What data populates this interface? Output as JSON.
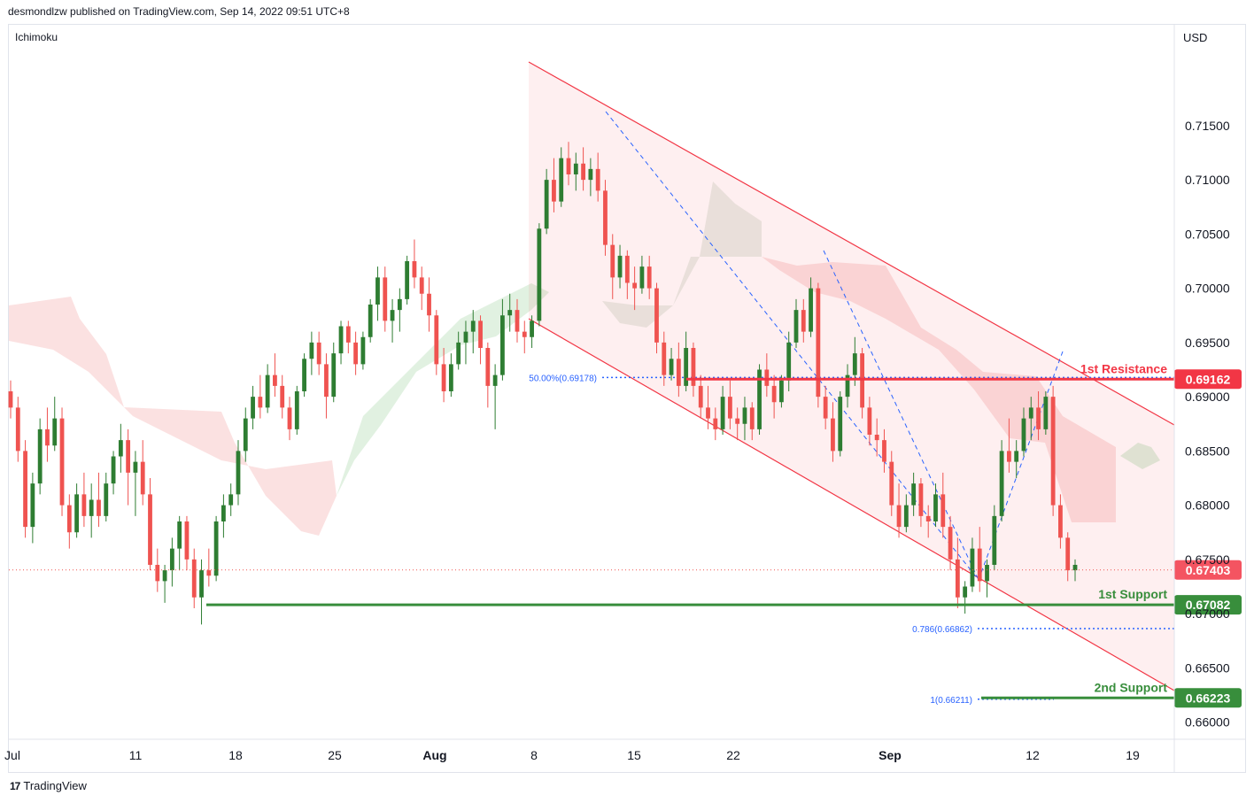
{
  "header": {
    "published": "desmondlzw published on TradingView.com, Sep 14, 2022 09:51 UTC+8"
  },
  "footer": {
    "brand": "TradingView",
    "logo": "17"
  },
  "indicator": "Ichimoku",
  "currency": "USD",
  "colors": {
    "up": "#26a69a",
    "up_body": "#2e7d32",
    "down": "#ef5350",
    "resistance": "#f23645",
    "support": "#388e3c",
    "fib": "#2962ff",
    "channel": "#f23645"
  },
  "chart_data": {
    "type": "candlestick",
    "title": "",
    "y_ticks": [
      "0.71500",
      "0.71000",
      "0.70500",
      "0.70000",
      "0.69500",
      "0.69000",
      "0.68500",
      "0.68000",
      "0.67500",
      "0.67000",
      "0.66500",
      "0.66000"
    ],
    "y_range": [
      0.6586,
      0.7226
    ],
    "x_ticks": [
      "Jul",
      "11",
      "18",
      "25",
      "Aug",
      "8",
      "15",
      "22",
      "Sep",
      "12",
      "19"
    ],
    "current_price": "0.67403",
    "levels": [
      {
        "name": "1st Resistance",
        "value": "0.69162",
        "kind": "resistance"
      },
      {
        "name": "1st Support",
        "value": "0.67082",
        "kind": "support"
      },
      {
        "name": "2nd Support",
        "value": "0.66223",
        "kind": "support"
      }
    ],
    "fib_labels": [
      {
        "label": "50.00%(0.69178)",
        "value": 0.69178
      },
      {
        "label": "0.786(0.66862)",
        "value": 0.66862
      },
      {
        "label": "1(0.66211)",
        "value": 0.66211
      }
    ],
    "candles": [
      [
        0.6905,
        0.6915,
        0.688,
        0.689
      ],
      [
        0.689,
        0.69,
        0.684,
        0.685
      ],
      [
        0.685,
        0.686,
        0.677,
        0.678
      ],
      [
        0.678,
        0.683,
        0.6765,
        0.682
      ],
      [
        0.682,
        0.688,
        0.681,
        0.687
      ],
      [
        0.687,
        0.689,
        0.684,
        0.6855
      ],
      [
        0.6855,
        0.69,
        0.685,
        0.688
      ],
      [
        0.688,
        0.689,
        0.679,
        0.68
      ],
      [
        0.68,
        0.681,
        0.676,
        0.6775
      ],
      [
        0.6775,
        0.682,
        0.677,
        0.681
      ],
      [
        0.681,
        0.683,
        0.678,
        0.679
      ],
      [
        0.679,
        0.682,
        0.677,
        0.6805
      ],
      [
        0.6805,
        0.683,
        0.678,
        0.679
      ],
      [
        0.679,
        0.683,
        0.6785,
        0.682
      ],
      [
        0.682,
        0.685,
        0.681,
        0.6845
      ],
      [
        0.6845,
        0.6875,
        0.683,
        0.686
      ],
      [
        0.686,
        0.687,
        0.68,
        0.683
      ],
      [
        0.683,
        0.685,
        0.679,
        0.684
      ],
      [
        0.684,
        0.686,
        0.68,
        0.681
      ],
      [
        0.681,
        0.6825,
        0.674,
        0.6745
      ],
      [
        0.6745,
        0.676,
        0.672,
        0.673
      ],
      [
        0.673,
        0.6745,
        0.671,
        0.674
      ],
      [
        0.674,
        0.677,
        0.6725,
        0.676
      ],
      [
        0.676,
        0.679,
        0.674,
        0.6785
      ],
      [
        0.6785,
        0.679,
        0.674,
        0.675
      ],
      [
        0.675,
        0.676,
        0.6705,
        0.6715
      ],
      [
        0.6715,
        0.675,
        0.669,
        0.674
      ],
      [
        0.674,
        0.676,
        0.6725,
        0.6735
      ],
      [
        0.6735,
        0.679,
        0.673,
        0.6785
      ],
      [
        0.6785,
        0.681,
        0.677,
        0.68
      ],
      [
        0.68,
        0.682,
        0.679,
        0.681
      ],
      [
        0.681,
        0.686,
        0.68,
        0.685
      ],
      [
        0.685,
        0.689,
        0.684,
        0.688
      ],
      [
        0.688,
        0.691,
        0.687,
        0.69
      ],
      [
        0.69,
        0.692,
        0.688,
        0.689
      ],
      [
        0.689,
        0.693,
        0.6885,
        0.692
      ],
      [
        0.692,
        0.694,
        0.69,
        0.691
      ],
      [
        0.691,
        0.692,
        0.688,
        0.689
      ],
      [
        0.689,
        0.69,
        0.686,
        0.687
      ],
      [
        0.687,
        0.691,
        0.6865,
        0.6905
      ],
      [
        0.6905,
        0.694,
        0.69,
        0.6935
      ],
      [
        0.6935,
        0.696,
        0.692,
        0.695
      ],
      [
        0.695,
        0.696,
        0.692,
        0.693
      ],
      [
        0.693,
        0.694,
        0.688,
        0.69
      ],
      [
        0.69,
        0.695,
        0.6895,
        0.694
      ],
      [
        0.694,
        0.697,
        0.693,
        0.6965
      ],
      [
        0.6965,
        0.697,
        0.694,
        0.695
      ],
      [
        0.695,
        0.696,
        0.692,
        0.693
      ],
      [
        0.693,
        0.696,
        0.6925,
        0.6955
      ],
      [
        0.6955,
        0.699,
        0.695,
        0.6985
      ],
      [
        0.6985,
        0.702,
        0.697,
        0.701
      ],
      [
        0.701,
        0.702,
        0.696,
        0.697
      ],
      [
        0.697,
        0.699,
        0.695,
        0.698
      ],
      [
        0.698,
        0.7,
        0.696,
        0.699
      ],
      [
        0.699,
        0.703,
        0.6985,
        0.7025
      ],
      [
        0.7025,
        0.7045,
        0.7,
        0.701
      ],
      [
        0.701,
        0.702,
        0.698,
        0.6995
      ],
      [
        0.6995,
        0.701,
        0.696,
        0.6975
      ],
      [
        0.6975,
        0.698,
        0.692,
        0.693
      ],
      [
        0.693,
        0.6945,
        0.6895,
        0.6905
      ],
      [
        0.6905,
        0.694,
        0.69,
        0.693
      ],
      [
        0.693,
        0.696,
        0.6925,
        0.695
      ],
      [
        0.695,
        0.697,
        0.693,
        0.696
      ],
      [
        0.696,
        0.698,
        0.694,
        0.697
      ],
      [
        0.697,
        0.6975,
        0.693,
        0.6945
      ],
      [
        0.6945,
        0.695,
        0.689,
        0.691
      ],
      [
        0.691,
        0.693,
        0.687,
        0.692
      ],
      [
        0.692,
        0.699,
        0.6915,
        0.6975
      ],
      [
        0.6975,
        0.6995,
        0.696,
        0.698
      ],
      [
        0.698,
        0.699,
        0.695,
        0.696
      ],
      [
        0.696,
        0.697,
        0.694,
        0.6955
      ],
      [
        0.6955,
        0.6975,
        0.6945,
        0.697
      ],
      [
        0.697,
        0.706,
        0.6965,
        0.7055
      ],
      [
        0.7055,
        0.711,
        0.705,
        0.71
      ],
      [
        0.71,
        0.712,
        0.707,
        0.708
      ],
      [
        0.708,
        0.713,
        0.7075,
        0.712
      ],
      [
        0.712,
        0.7135,
        0.7095,
        0.7105
      ],
      [
        0.7105,
        0.7125,
        0.709,
        0.7115
      ],
      [
        0.7115,
        0.713,
        0.709,
        0.71
      ],
      [
        0.71,
        0.712,
        0.7085,
        0.711
      ],
      [
        0.711,
        0.7125,
        0.708,
        0.709
      ],
      [
        0.709,
        0.71,
        0.703,
        0.704
      ],
      [
        0.704,
        0.705,
        0.699,
        0.701
      ],
      [
        0.701,
        0.704,
        0.7,
        0.703
      ],
      [
        0.703,
        0.7035,
        0.699,
        0.7005
      ],
      [
        0.7005,
        0.702,
        0.698,
        0.7
      ],
      [
        0.7,
        0.703,
        0.6995,
        0.702
      ],
      [
        0.702,
        0.703,
        0.699,
        0.7
      ],
      [
        0.7,
        0.7005,
        0.694,
        0.695
      ],
      [
        0.695,
        0.696,
        0.691,
        0.692
      ],
      [
        0.692,
        0.6945,
        0.6915,
        0.6935
      ],
      [
        0.6935,
        0.695,
        0.69,
        0.691
      ],
      [
        0.691,
        0.696,
        0.6905,
        0.6945
      ],
      [
        0.6945,
        0.695,
        0.69,
        0.691
      ],
      [
        0.691,
        0.692,
        0.688,
        0.689
      ],
      [
        0.689,
        0.691,
        0.687,
        0.688
      ],
      [
        0.688,
        0.689,
        0.686,
        0.687
      ],
      [
        0.687,
        0.691,
        0.6865,
        0.69
      ],
      [
        0.69,
        0.6915,
        0.687,
        0.688
      ],
      [
        0.688,
        0.689,
        0.686,
        0.6875
      ],
      [
        0.6875,
        0.69,
        0.686,
        0.689
      ],
      [
        0.689,
        0.6895,
        0.686,
        0.687
      ],
      [
        0.687,
        0.693,
        0.6865,
        0.6925
      ],
      [
        0.6925,
        0.694,
        0.69,
        0.691
      ],
      [
        0.691,
        0.692,
        0.688,
        0.6895
      ],
      [
        0.6895,
        0.692,
        0.689,
        0.6915
      ],
      [
        0.6915,
        0.696,
        0.6905,
        0.695
      ],
      [
        0.695,
        0.699,
        0.6945,
        0.698
      ],
      [
        0.698,
        0.699,
        0.695,
        0.696
      ],
      [
        0.696,
        0.701,
        0.6955,
        0.7
      ],
      [
        0.7,
        0.7005,
        0.689,
        0.69
      ],
      [
        0.69,
        0.691,
        0.687,
        0.688
      ],
      [
        0.688,
        0.6895,
        0.684,
        0.685
      ],
      [
        0.685,
        0.6905,
        0.6845,
        0.69
      ],
      [
        0.69,
        0.693,
        0.689,
        0.692
      ],
      [
        0.692,
        0.6955,
        0.691,
        0.694
      ],
      [
        0.694,
        0.6945,
        0.688,
        0.689
      ],
      [
        0.689,
        0.69,
        0.6855,
        0.6865
      ],
      [
        0.6865,
        0.688,
        0.6845,
        0.686
      ],
      [
        0.686,
        0.687,
        0.683,
        0.684
      ],
      [
        0.684,
        0.685,
        0.679,
        0.68
      ],
      [
        0.68,
        0.682,
        0.677,
        0.678
      ],
      [
        0.678,
        0.681,
        0.6775,
        0.68
      ],
      [
        0.68,
        0.683,
        0.679,
        0.682
      ],
      [
        0.682,
        0.6825,
        0.678,
        0.679
      ],
      [
        0.679,
        0.68,
        0.677,
        0.6785
      ],
      [
        0.6785,
        0.682,
        0.678,
        0.681
      ],
      [
        0.681,
        0.683,
        0.677,
        0.678
      ],
      [
        0.678,
        0.679,
        0.674,
        0.675
      ],
      [
        0.675,
        0.677,
        0.6705,
        0.6715
      ],
      [
        0.6715,
        0.673,
        0.67,
        0.6725
      ],
      [
        0.6725,
        0.677,
        0.672,
        0.676
      ],
      [
        0.676,
        0.678,
        0.672,
        0.673
      ],
      [
        0.673,
        0.675,
        0.6715,
        0.6745
      ],
      [
        0.6745,
        0.68,
        0.674,
        0.679
      ],
      [
        0.679,
        0.686,
        0.6785,
        0.685
      ],
      [
        0.685,
        0.688,
        0.683,
        0.684
      ],
      [
        0.684,
        0.686,
        0.6825,
        0.685
      ],
      [
        0.685,
        0.689,
        0.6845,
        0.688
      ],
      [
        0.688,
        0.69,
        0.686,
        0.689
      ],
      [
        0.689,
        0.6905,
        0.686,
        0.687
      ],
      [
        0.687,
        0.6905,
        0.6865,
        0.69
      ],
      [
        0.69,
        0.691,
        0.679,
        0.68
      ],
      [
        0.68,
        0.681,
        0.676,
        0.677
      ],
      [
        0.677,
        0.6775,
        0.673,
        0.674
      ],
      [
        0.674,
        0.675,
        0.673,
        0.6745
      ]
    ],
    "resistance_line": {
      "from": 0.69162,
      "to": 0.69162
    },
    "support_line_1": {
      "from": 0.67082,
      "to": 0.67082
    },
    "support_line_2": {
      "from": 0.66223,
      "to": 0.66223
    }
  }
}
